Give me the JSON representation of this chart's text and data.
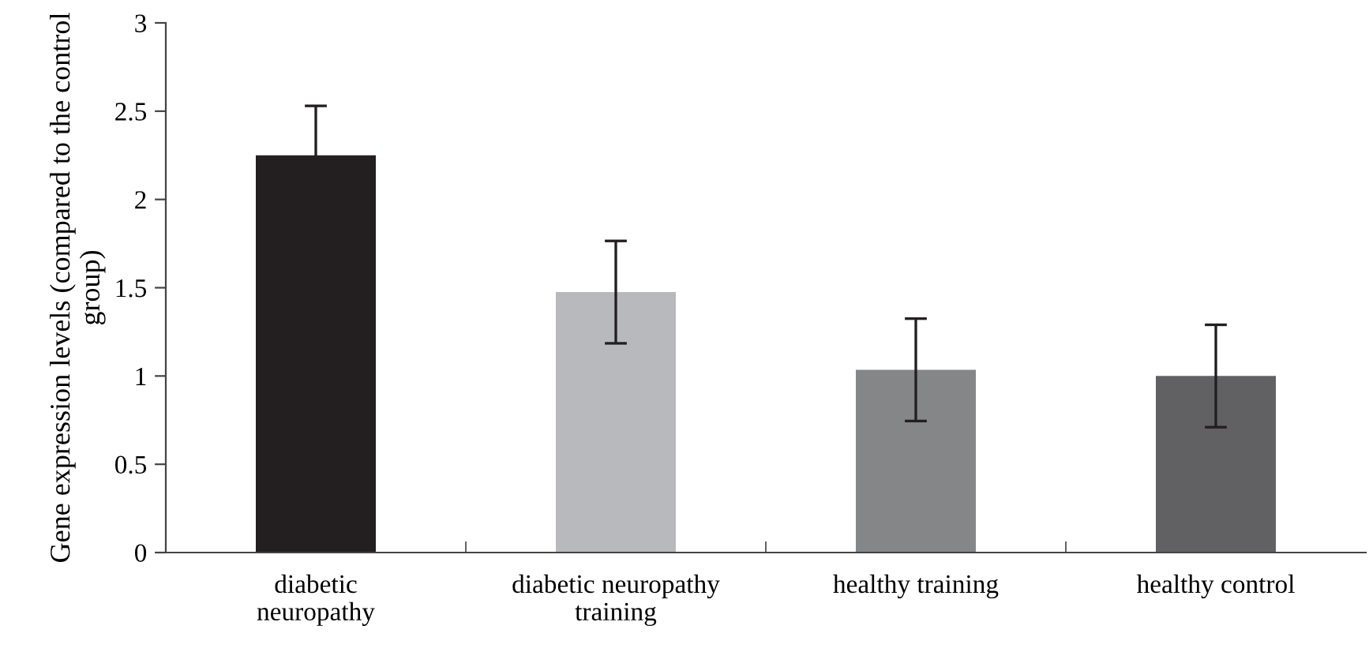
{
  "chart_data": {
    "type": "bar",
    "ylabel": "Gene expression levels (compared to the control group)",
    "categories": [
      "diabetic\nneuropathy",
      "diabetic neuropathy\ntraining",
      "healthy training",
      "healthy control"
    ],
    "values": [
      2.25,
      1.475,
      1.035,
      1.0
    ],
    "errors": [
      0.28,
      0.29,
      0.29,
      0.29
    ],
    "colors": [
      "#231f20",
      "#b8b9bc",
      "#858688",
      "#616163"
    ],
    "ylim": [
      0,
      3
    ],
    "yticks": [
      0,
      0.5,
      1,
      1.5,
      2,
      2.5,
      3
    ],
    "grid": false
  }
}
